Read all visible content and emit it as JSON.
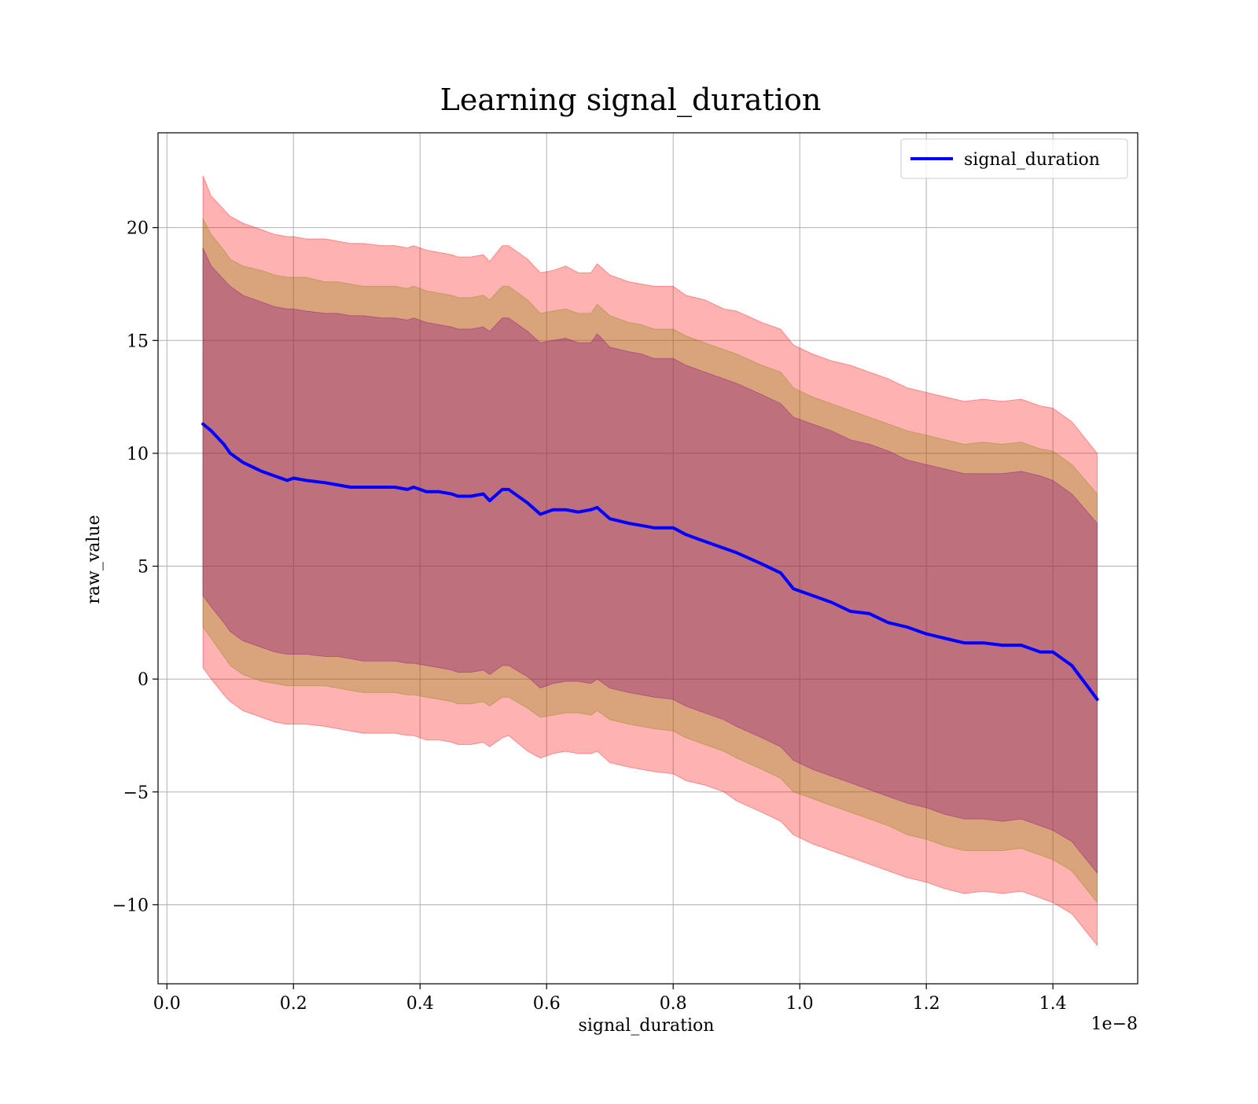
{
  "chart_data": {
    "type": "line",
    "title": "Learning signal_duration",
    "xlabel": "signal_duration",
    "ylabel": "raw_value",
    "x_offset_label": "1e−8",
    "xlim": [
      -0.014,
      1.534
    ],
    "ylim": [
      -13.5,
      24.2
    ],
    "x_ticks": [
      0.0,
      0.2,
      0.4,
      0.6,
      0.8,
      1.0,
      1.2,
      1.4
    ],
    "x_tick_labels": [
      "0.0",
      "0.2",
      "0.4",
      "0.6",
      "0.8",
      "1.0",
      "1.2",
      "1.4"
    ],
    "y_ticks": [
      -10,
      -5,
      0,
      5,
      10,
      15,
      20
    ],
    "y_tick_labels": [
      "−10",
      "−5",
      "0",
      "5",
      "10",
      "15",
      "20"
    ],
    "grid": true,
    "legend": {
      "position": "upper-right",
      "entries": [
        "signal_duration"
      ]
    },
    "colors": {
      "line": "#0000ff",
      "band_outer": "#ff0000",
      "band_middle": "#808000",
      "band_inner": "#800080"
    },
    "x": [
      0.057,
      0.07,
      0.09,
      0.1,
      0.12,
      0.15,
      0.17,
      0.19,
      0.2,
      0.22,
      0.25,
      0.27,
      0.29,
      0.31,
      0.34,
      0.36,
      0.38,
      0.39,
      0.41,
      0.43,
      0.45,
      0.46,
      0.48,
      0.5,
      0.51,
      0.53,
      0.54,
      0.57,
      0.59,
      0.61,
      0.63,
      0.65,
      0.67,
      0.68,
      0.7,
      0.73,
      0.75,
      0.77,
      0.8,
      0.82,
      0.85,
      0.88,
      0.9,
      0.94,
      0.97,
      0.99,
      1.02,
      1.05,
      1.08,
      1.11,
      1.14,
      1.17,
      1.2,
      1.23,
      1.26,
      1.29,
      1.32,
      1.35,
      1.38,
      1.4,
      1.43,
      1.47
    ],
    "series": [
      {
        "name": "signal_duration",
        "values": [
          11.3,
          11.0,
          10.4,
          10.0,
          9.6,
          9.2,
          9.0,
          8.8,
          8.9,
          8.8,
          8.7,
          8.6,
          8.5,
          8.5,
          8.5,
          8.5,
          8.4,
          8.5,
          8.3,
          8.3,
          8.2,
          8.1,
          8.1,
          8.2,
          7.9,
          8.4,
          8.4,
          7.8,
          7.3,
          7.5,
          7.5,
          7.4,
          7.5,
          7.6,
          7.1,
          6.9,
          6.8,
          6.7,
          6.7,
          6.4,
          6.1,
          5.8,
          5.6,
          5.1,
          4.7,
          4.0,
          3.7,
          3.4,
          3.0,
          2.9,
          2.5,
          2.3,
          2.0,
          1.8,
          1.6,
          1.6,
          1.5,
          1.5,
          1.2,
          1.2,
          0.6,
          -0.9
        ]
      }
    ],
    "bands": [
      {
        "name": "outer",
        "upper": [
          22.3,
          21.4,
          20.8,
          20.5,
          20.2,
          19.9,
          19.7,
          19.6,
          19.6,
          19.5,
          19.5,
          19.4,
          19.3,
          19.3,
          19.2,
          19.2,
          19.1,
          19.2,
          19.0,
          18.9,
          18.8,
          18.7,
          18.7,
          18.8,
          18.5,
          19.2,
          19.2,
          18.6,
          18.0,
          18.1,
          18.3,
          18.0,
          18.0,
          18.4,
          17.9,
          17.6,
          17.5,
          17.4,
          17.4,
          17.0,
          16.8,
          16.4,
          16.3,
          15.8,
          15.5,
          14.8,
          14.4,
          14.1,
          13.9,
          13.6,
          13.3,
          12.9,
          12.7,
          12.5,
          12.3,
          12.4,
          12.3,
          12.4,
          12.1,
          12.0,
          11.4,
          10.0
        ],
        "lower": [
          0.5,
          0.0,
          -0.7,
          -1.0,
          -1.4,
          -1.7,
          -1.9,
          -2.0,
          -2.0,
          -2.0,
          -2.1,
          -2.2,
          -2.3,
          -2.4,
          -2.4,
          -2.4,
          -2.5,
          -2.5,
          -2.7,
          -2.7,
          -2.8,
          -2.9,
          -2.9,
          -2.8,
          -3.0,
          -2.6,
          -2.5,
          -3.2,
          -3.5,
          -3.3,
          -3.2,
          -3.3,
          -3.3,
          -3.2,
          -3.7,
          -3.9,
          -4.0,
          -4.1,
          -4.2,
          -4.5,
          -4.7,
          -5.0,
          -5.4,
          -5.9,
          -6.3,
          -6.9,
          -7.3,
          -7.6,
          -7.9,
          -8.2,
          -8.5,
          -8.8,
          -9.0,
          -9.3,
          -9.5,
          -9.4,
          -9.5,
          -9.4,
          -9.7,
          -9.9,
          -10.4,
          -11.8
        ]
      },
      {
        "name": "middle",
        "upper": [
          20.4,
          19.7,
          19.0,
          18.6,
          18.3,
          18.1,
          17.9,
          17.8,
          17.8,
          17.8,
          17.6,
          17.6,
          17.5,
          17.4,
          17.4,
          17.4,
          17.3,
          17.4,
          17.2,
          17.1,
          17.0,
          16.9,
          16.9,
          17.0,
          16.8,
          17.4,
          17.4,
          16.8,
          16.2,
          16.3,
          16.4,
          16.2,
          16.2,
          16.6,
          16.1,
          15.8,
          15.7,
          15.5,
          15.5,
          15.2,
          14.9,
          14.6,
          14.4,
          13.9,
          13.6,
          12.9,
          12.5,
          12.2,
          11.9,
          11.6,
          11.3,
          11.0,
          10.8,
          10.6,
          10.4,
          10.5,
          10.4,
          10.5,
          10.2,
          10.1,
          9.5,
          8.2
        ],
        "lower": [
          2.3,
          1.8,
          1.0,
          0.6,
          0.2,
          -0.1,
          -0.2,
          -0.3,
          -0.3,
          -0.3,
          -0.3,
          -0.4,
          -0.5,
          -0.6,
          -0.6,
          -0.6,
          -0.7,
          -0.7,
          -0.8,
          -0.9,
          -1.0,
          -1.1,
          -1.1,
          -1.0,
          -1.2,
          -0.8,
          -0.8,
          -1.3,
          -1.7,
          -1.6,
          -1.5,
          -1.5,
          -1.6,
          -1.4,
          -1.8,
          -2.0,
          -2.1,
          -2.2,
          -2.3,
          -2.6,
          -2.9,
          -3.2,
          -3.5,
          -4.0,
          -4.4,
          -5.0,
          -5.3,
          -5.6,
          -5.9,
          -6.2,
          -6.5,
          -6.9,
          -7.1,
          -7.4,
          -7.6,
          -7.6,
          -7.6,
          -7.5,
          -7.8,
          -8.0,
          -8.5,
          -9.9
        ]
      },
      {
        "name": "inner",
        "upper": [
          19.1,
          18.3,
          17.7,
          17.4,
          17.0,
          16.7,
          16.5,
          16.4,
          16.4,
          16.3,
          16.2,
          16.2,
          16.1,
          16.1,
          16.0,
          16.0,
          15.9,
          16.0,
          15.8,
          15.7,
          15.6,
          15.5,
          15.5,
          15.6,
          15.4,
          16.0,
          16.0,
          15.4,
          14.9,
          15.0,
          15.1,
          14.9,
          14.9,
          15.3,
          14.7,
          14.5,
          14.4,
          14.2,
          14.2,
          13.9,
          13.6,
          13.3,
          13.1,
          12.6,
          12.2,
          11.6,
          11.3,
          11.0,
          10.6,
          10.4,
          10.1,
          9.7,
          9.5,
          9.3,
          9.1,
          9.1,
          9.1,
          9.2,
          9.0,
          8.8,
          8.2,
          6.9
        ],
        "lower": [
          3.7,
          3.2,
          2.5,
          2.1,
          1.7,
          1.4,
          1.2,
          1.1,
          1.1,
          1.1,
          1.0,
          1.0,
          0.9,
          0.8,
          0.8,
          0.8,
          0.7,
          0.7,
          0.6,
          0.5,
          0.4,
          0.3,
          0.3,
          0.4,
          0.2,
          0.6,
          0.6,
          0.1,
          -0.4,
          -0.2,
          -0.1,
          -0.1,
          -0.2,
          0.0,
          -0.4,
          -0.6,
          -0.7,
          -0.8,
          -0.9,
          -1.2,
          -1.5,
          -1.8,
          -2.1,
          -2.6,
          -3.0,
          -3.6,
          -4.0,
          -4.3,
          -4.6,
          -4.9,
          -5.2,
          -5.5,
          -5.7,
          -6.0,
          -6.2,
          -6.2,
          -6.3,
          -6.2,
          -6.5,
          -6.7,
          -7.2,
          -8.6
        ]
      }
    ]
  }
}
